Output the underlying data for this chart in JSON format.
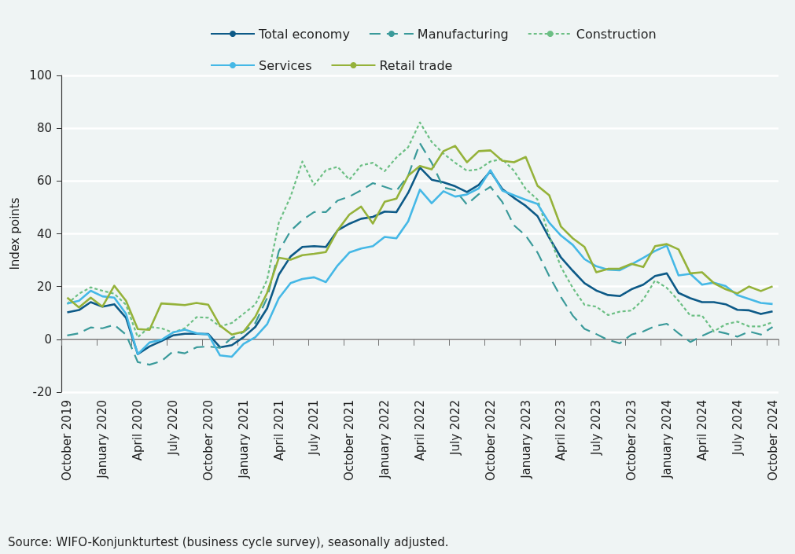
{
  "chart_data": {
    "type": "line",
    "ylabel": "Index points",
    "annotations": [
      "Source: WIFO-Konjunkturtest (business cycle survey), seasonally adjusted."
    ],
    "categories": [
      "October 2019",
      null,
      null,
      "January 2020",
      null,
      null,
      "April 2020",
      null,
      null,
      "July 2020",
      null,
      null,
      "October 2020",
      null,
      null,
      "January 2021",
      null,
      null,
      "April 2021",
      null,
      null,
      "July 2021",
      null,
      null,
      "October 2021",
      null,
      null,
      "January 2022",
      null,
      null,
      "April 2022",
      null,
      null,
      "July 2022",
      null,
      null,
      "October 2022",
      null,
      null,
      "January 2023",
      null,
      null,
      "April 2023",
      null,
      null,
      "July 2023",
      null,
      null,
      "October 2023",
      null,
      null,
      "January 2024",
      null,
      null,
      "April 2024",
      null,
      null,
      "July 2024",
      null,
      null,
      "October 2024"
    ],
    "series": [
      {
        "name": "Total economy",
        "color": "#0d5a87",
        "line_style": "solid",
        "values": [
          10.2,
          11.1,
          14.1,
          12.4,
          13.3,
          8.2,
          -5.6,
          -2.7,
          -0.7,
          1.5,
          2.1,
          2.1,
          2.0,
          -3.0,
          -2.2,
          0.8,
          4.7,
          11.7,
          24.5,
          31.4,
          35.0,
          35.3,
          35.0,
          41.3,
          43.8,
          45.7,
          46.4,
          48.4,
          48.2,
          55.5,
          65.1,
          60.5,
          59.5,
          58.0,
          55.8,
          58.5,
          63.7,
          57.0,
          53.6,
          50.6,
          46.7,
          38.5,
          31,
          26,
          21.3,
          18.5,
          16.8,
          16.4,
          19.0,
          20.7,
          24.0,
          25.0,
          17.6,
          15.6,
          14.1,
          14.1,
          13.3,
          11.2,
          11.0,
          9.6,
          10.6
        ]
      },
      {
        "name": "Manufacturing",
        "color": "#3a9a9a",
        "line_style": "dashed",
        "values": [
          1.5,
          2.3,
          4.5,
          4.2,
          5.5,
          1.8,
          -8.6,
          -9.6,
          -8.3,
          -4.6,
          -5.3,
          -3.0,
          -2.7,
          -3.2,
          0.5,
          2.8,
          6.2,
          15.6,
          33.4,
          41.1,
          45.2,
          48.2,
          48.2,
          52.6,
          54.1,
          56.5,
          59.2,
          57.8,
          56.3,
          62,
          74.3,
          66.9,
          57.5,
          56.5,
          51.1,
          55.0,
          57.8,
          52.1,
          43.2,
          39.3,
          32.9,
          24.0,
          16,
          9,
          4.0,
          2.0,
          -0.2,
          -1.5,
          1.8,
          3.0,
          5.0,
          5.9,
          2.3,
          -1.0,
          1.3,
          3.3,
          2.3,
          1.0,
          3.0,
          1.8,
          4.7
        ]
      },
      {
        "name": "Construction",
        "color": "#6cbf84",
        "line_style": "dotted",
        "values": [
          13.4,
          17.3,
          19.7,
          18.4,
          17.3,
          13.1,
          0.8,
          4.7,
          4.2,
          2.6,
          4.2,
          8.4,
          8.2,
          4.9,
          6.2,
          9.7,
          13.2,
          22.5,
          44.2,
          54.1,
          67.4,
          58.5,
          64.1,
          65.4,
          60.5,
          65.9,
          66.9,
          63.7,
          68.9,
          72.8,
          82.2,
          74.8,
          70.4,
          66.9,
          63.9,
          64.4,
          67.4,
          68.3,
          63.9,
          57.0,
          53.0,
          39.3,
          27.4,
          19.5,
          13.1,
          12.4,
          9.2,
          10.5,
          10.9,
          15.1,
          22.3,
          19.5,
          14.6,
          9.0,
          9.0,
          3.0,
          5.7,
          6.7,
          4.9,
          4.9,
          6.5
        ]
      },
      {
        "name": "Services",
        "color": "#45b8e6",
        "line_style": "solid",
        "values": [
          13.6,
          14.6,
          18.4,
          16.3,
          15.8,
          9.7,
          -5.6,
          -1.2,
          -0.2,
          2.6,
          3.7,
          2.3,
          1.8,
          -6.1,
          -6.6,
          -1.7,
          0.8,
          5.7,
          15.6,
          21.3,
          22.9,
          23.5,
          21.7,
          28.0,
          32.9,
          34.4,
          35.3,
          38.8,
          38.3,
          44.7,
          56.7,
          51.6,
          56.1,
          54.1,
          54.9,
          57.2,
          64.1,
          56.4,
          54.6,
          52.9,
          51.3,
          44.2,
          39.3,
          35.8,
          30.4,
          27.7,
          26.4,
          26.2,
          28.4,
          30.9,
          33.5,
          35.5,
          24.2,
          24.8,
          20.7,
          21.5,
          20.2,
          16.8,
          15.3,
          13.8,
          13.4
        ]
      },
      {
        "name": "Retail trade",
        "color": "#95b23a",
        "line_style": "solid",
        "values": [
          15.8,
          12.1,
          15.8,
          12.4,
          20.3,
          14.6,
          3.9,
          3.6,
          13.6,
          13.3,
          13.0,
          13.8,
          13.1,
          5.2,
          1.8,
          2.9,
          8.6,
          17.6,
          30.9,
          30.2,
          31.9,
          32.4,
          33.1,
          41.3,
          47.3,
          50.3,
          43.9,
          52.1,
          53.3,
          62.0,
          65.7,
          64.4,
          71.3,
          73.3,
          67.1,
          71.3,
          71.6,
          67.7,
          67.1,
          69.1,
          58.2,
          54.6,
          42.7,
          38.3,
          35.0,
          25.4,
          26.7,
          26.8,
          28.6,
          27.4,
          35.3,
          36.1,
          34.1,
          25.0,
          25.4,
          21.3,
          19.0,
          17.4,
          20.0,
          18.3,
          20.1
        ]
      }
    ],
    "ylim": [
      -20,
      100
    ],
    "yticks": [
      -20,
      0,
      20,
      40,
      60,
      80,
      100
    ],
    "grid": "y",
    "legend": "top",
    "marker": "none"
  }
}
